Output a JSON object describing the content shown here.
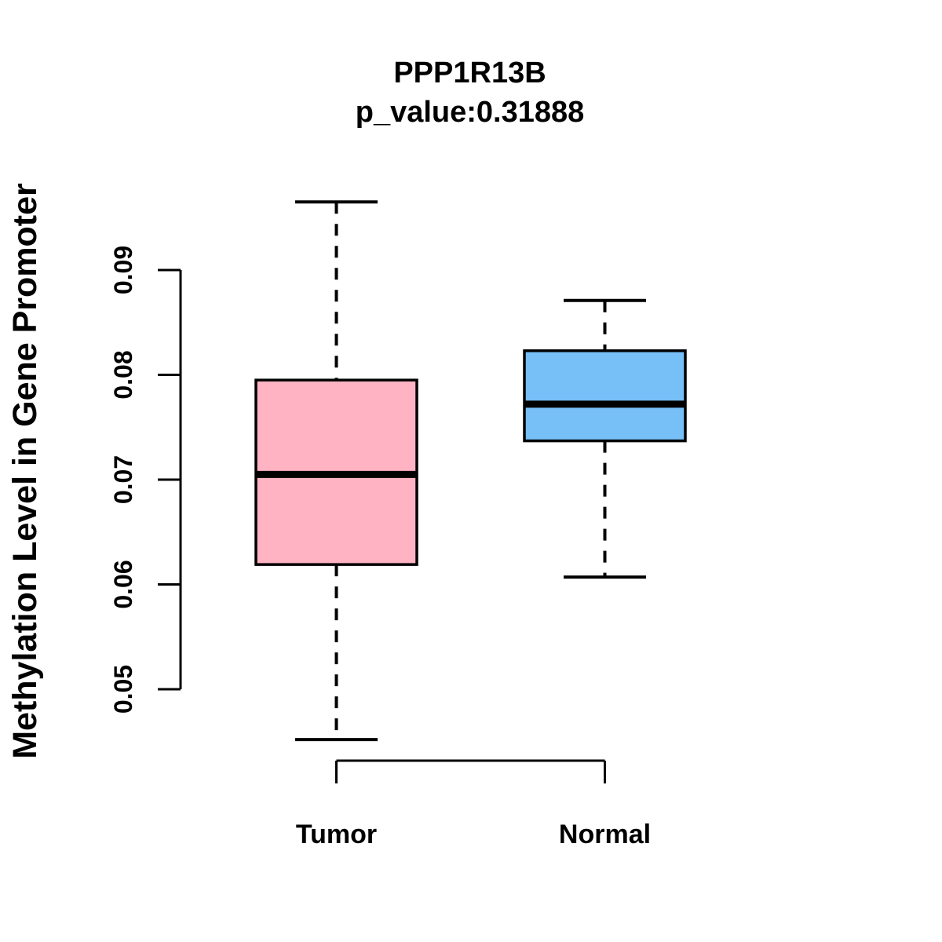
{
  "figure": {
    "background": "#FFFFFF"
  },
  "chart_data": {
    "type": "box",
    "title": "PPP1R13B",
    "subtitle": "p_value:0.31888",
    "ylabel": "Methylation Level in Gene Promoter",
    "xlabel": "",
    "categories": [
      "Tumor",
      "Normal"
    ],
    "ylim": [
      0.05,
      0.09
    ],
    "yticks": [
      0.05,
      0.06,
      0.07,
      0.08,
      0.09
    ],
    "ytick_labels": [
      "0.05",
      "0.06",
      "0.07",
      "0.08",
      "0.09"
    ],
    "grid": false,
    "legend": "none",
    "series": [
      {
        "name": "Tumor",
        "box_color": "#FFB3C3",
        "whisker_low": 0.0452,
        "q1": 0.0619,
        "median": 0.0705,
        "q3": 0.0795,
        "whisker_high": 0.0965,
        "outliers": []
      },
      {
        "name": "Normal",
        "box_color": "#77BFF7",
        "whisker_low": 0.0607,
        "q1": 0.0737,
        "median": 0.0772,
        "q3": 0.0823,
        "whisker_high": 0.0871,
        "outliers": []
      }
    ],
    "colors": {
      "stroke": "#000000",
      "text": "#000000"
    }
  }
}
